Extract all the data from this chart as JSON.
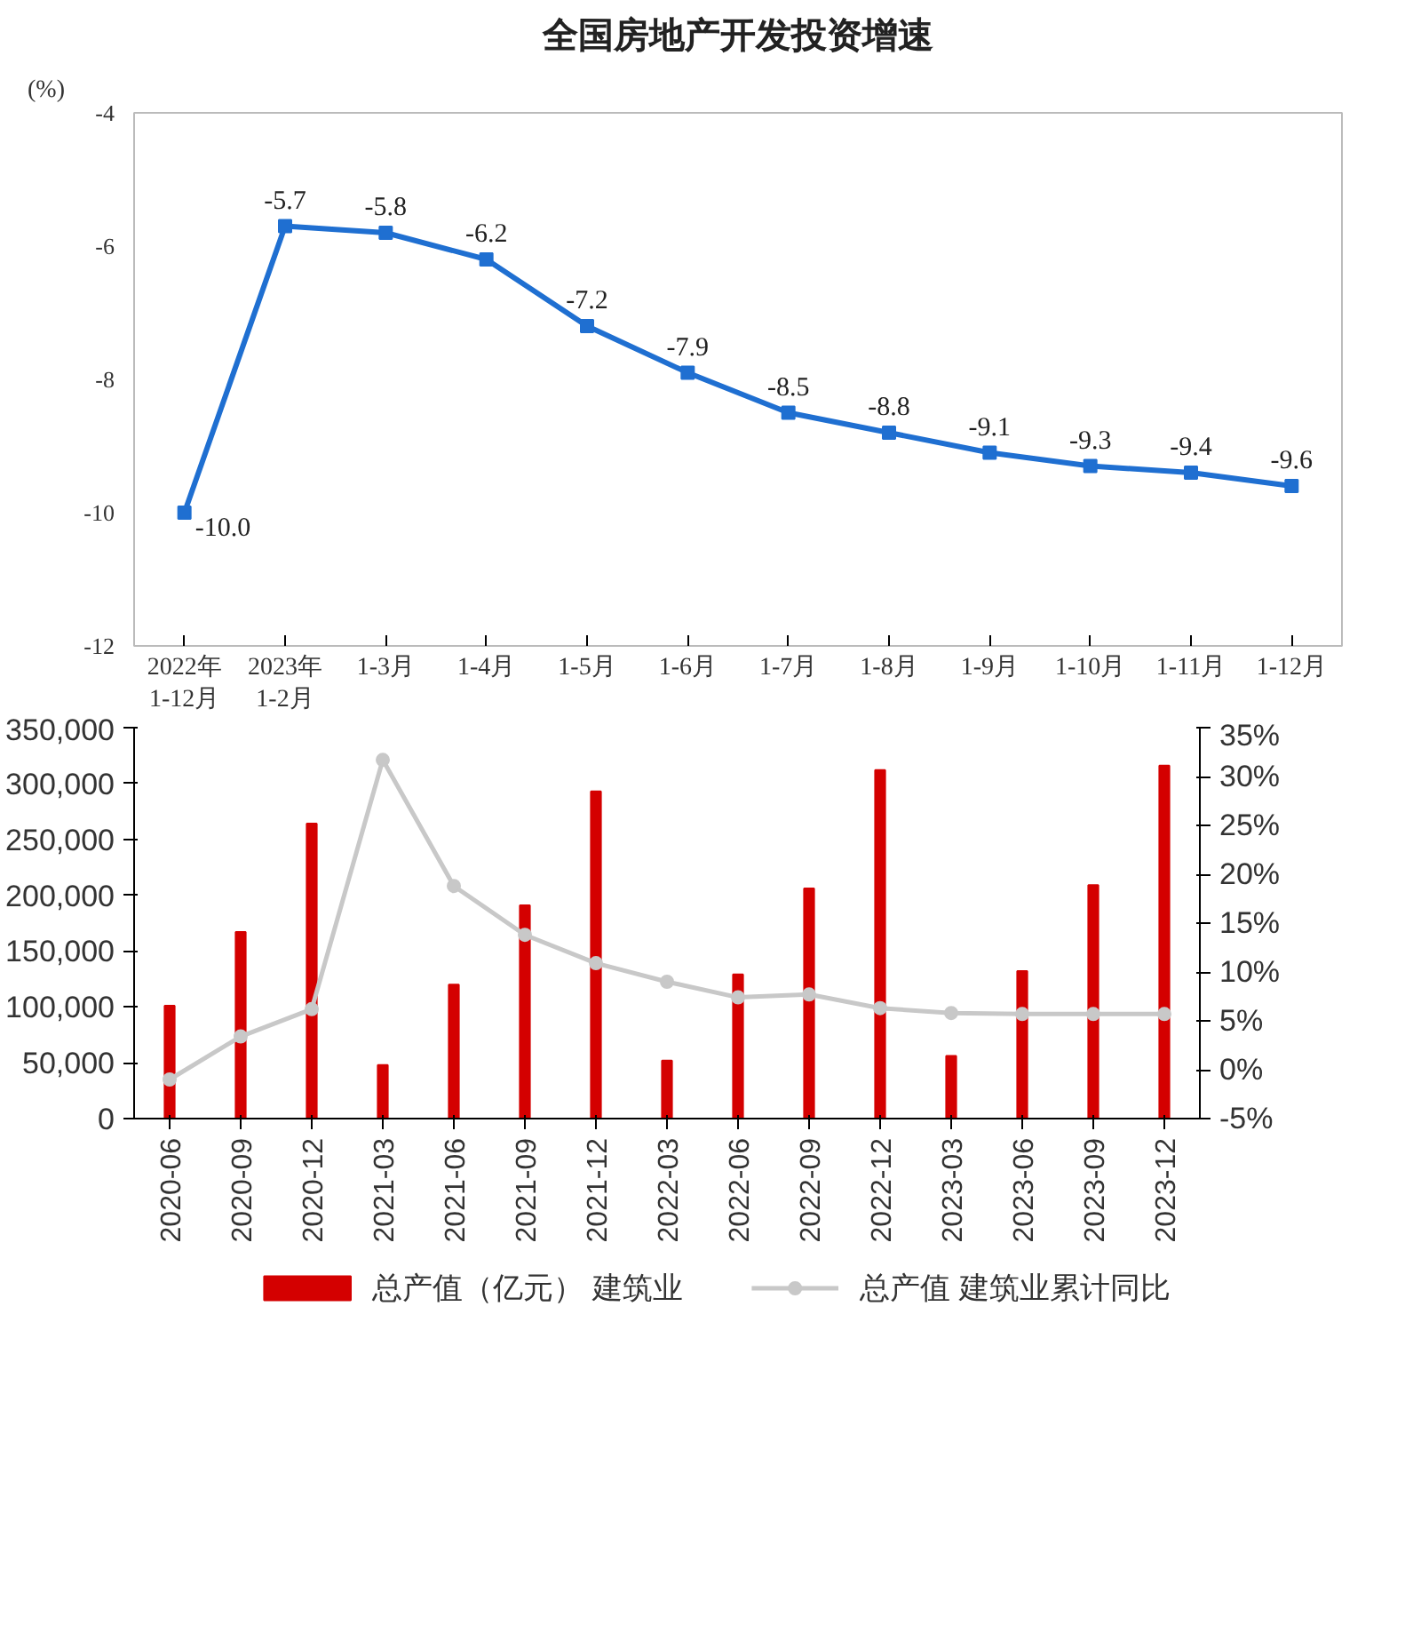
{
  "chart_data": [
    {
      "type": "line",
      "title": "全国房地产开发投资增速",
      "ylabel": "(%)",
      "categories": [
        "2022年\n1-12月",
        "2023年\n1-2月",
        "1-3月",
        "1-4月",
        "1-5月",
        "1-6月",
        "1-7月",
        "1-8月",
        "1-9月",
        "1-10月",
        "1-11月",
        "1-12月"
      ],
      "series": [
        {
          "color": "#1f6fd1",
          "values": [
            -10.0,
            -5.7,
            -5.8,
            -6.2,
            -7.2,
            -7.9,
            -8.5,
            -8.8,
            -9.1,
            -9.3,
            -9.4,
            -9.6
          ],
          "value_labels": [
            "-10.0",
            "-5.7",
            "-5.8",
            "-6.2",
            "-7.2",
            "-7.9",
            "-8.5",
            "-8.8",
            "-9.1",
            "-9.3",
            "-9.4",
            "-9.6"
          ]
        }
      ],
      "ylim": [
        -12,
        -4
      ],
      "yticks": [
        -12,
        -10,
        -8,
        -6,
        -4
      ],
      "marker": "square",
      "grid": false,
      "legend": false
    },
    {
      "type": "bar",
      "categories": [
        "2020-06",
        "2020-09",
        "2020-12",
        "2021-03",
        "2021-06",
        "2021-09",
        "2021-12",
        "2022-03",
        "2022-06",
        "2022-09",
        "2022-12",
        "2023-03",
        "2023-06",
        "2023-09",
        "2023-12"
      ],
      "series": [
        {
          "name": "总产值（亿元） 建筑业",
          "type": "bar",
          "color": "#d40000",
          "values": [
            101000,
            167000,
            264000,
            48000,
            120000,
            191000,
            293000,
            52000,
            129000,
            206000,
            312000,
            56000,
            132000,
            209000,
            316000
          ]
        },
        {
          "name": "总产值 建筑业累计同比",
          "type": "line",
          "axis": "y2",
          "color": "#c8c8c8",
          "marker": "circle",
          "values": [
            -1.0,
            3.4,
            6.2,
            31.7,
            18.8,
            13.8,
            10.9,
            9.0,
            7.4,
            7.7,
            6.3,
            5.8,
            5.7,
            5.7,
            5.7
          ]
        }
      ],
      "ylim": [
        0,
        350000
      ],
      "yticks": [
        0,
        {
          "value": 50000,
          "label": "50,000"
        },
        {
          "value": 100000,
          "label": "100,000"
        },
        {
          "value": 150000,
          "label": "150,000"
        },
        {
          "value": 200000,
          "label": "200,000"
        },
        {
          "value": 250000,
          "label": "250,000"
        },
        {
          "value": 300000,
          "label": "300,000"
        },
        {
          "value": 350000,
          "label": "350,000"
        }
      ],
      "y2lim": [
        -5,
        35
      ],
      "y2ticks": [
        {
          "value": -5,
          "label": "-5%"
        },
        {
          "value": 0,
          "label": "0%"
        },
        {
          "value": 5,
          "label": "5%"
        },
        {
          "value": 10,
          "label": "10%"
        },
        {
          "value": 15,
          "label": "15%"
        },
        {
          "value": 20,
          "label": "20%"
        },
        {
          "value": 25,
          "label": "25%"
        },
        {
          "value": 30,
          "label": "30%"
        },
        {
          "value": 35,
          "label": "35%"
        }
      ],
      "legend": "bottom",
      "grid": false
    }
  ]
}
